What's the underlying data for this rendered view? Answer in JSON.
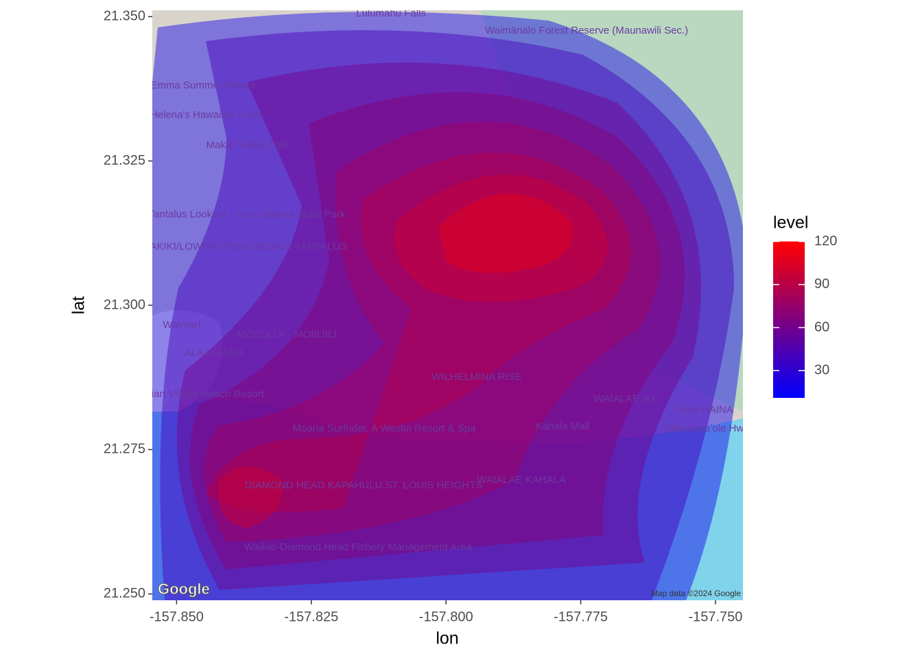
{
  "chart_data": {
    "type": "density_map",
    "x_label": "lon",
    "y_label": "lat",
    "xlim": [
      -157.8545,
      -157.7449
    ],
    "ylim": [
      21.2489,
      21.3511
    ],
    "xticks": [
      {
        "value": -157.85,
        "label": "-157.850"
      },
      {
        "value": -157.825,
        "label": "-157.825"
      },
      {
        "value": -157.8,
        "label": "-157.800"
      },
      {
        "value": -157.775,
        "label": "-157.775"
      },
      {
        "value": -157.75,
        "label": "-157.750"
      }
    ],
    "yticks": [
      {
        "value": 21.25,
        "label": "21.250"
      },
      {
        "value": 21.275,
        "label": "21.275"
      },
      {
        "value": 21.3,
        "label": "21.300"
      },
      {
        "value": 21.325,
        "label": "21.325"
      },
      {
        "value": 21.35,
        "label": "21.350"
      }
    ],
    "legend": {
      "title": "level",
      "limits": [
        11,
        120
      ],
      "ticks": [
        30,
        60,
        90,
        120
      ],
      "low_color": "#0000ff",
      "high_color": "#ff0000"
    },
    "contour_levels": [
      20,
      40,
      60,
      70,
      80,
      90,
      100,
      110
    ],
    "map_labels": [
      "Lulumahu Falls",
      "Waimānalo Forest Reserve (Maunawili Sec.)",
      "Queen Emma Summer Palace",
      "Helena's Hawaiian Food",
      "Makiki Valley Trail",
      "Tantalus Lookout - Puu Ualakaa State Park",
      "MAKIKI/LOWER/ PUNCHBOWL/ TANTALUS",
      "Walmart",
      "MCCULLY - MOIILIILI",
      "ALA MOANA",
      "Hawaiian Village Beach Resort",
      "Moana Surfrider, A Westin Resort & Spa",
      "WILHELMINA RISE",
      "Kahala Mall",
      "WAIALAE IKI",
      "ʻĀINA HAINA",
      "DIAMOND HEAD KAPAHULU ST. LOUIS HEIGHTS",
      "WAIALAE KAHALA",
      "Waikiki-Diamond Head Fishery Management Area",
      "Kalanianaʻole Hwy"
    ],
    "attribution": "Map data ©2024 Google",
    "logo": "Google"
  }
}
